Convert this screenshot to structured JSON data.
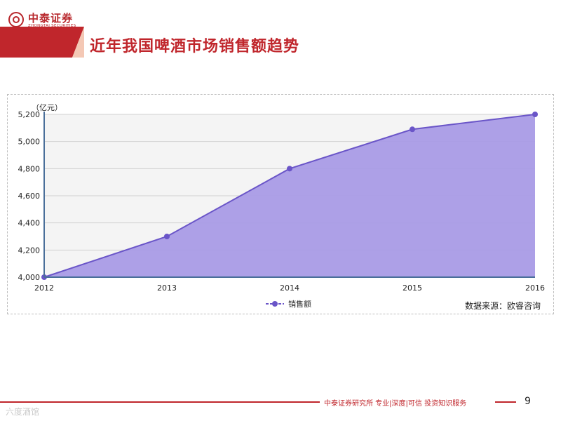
{
  "header": {
    "logo_cn": "中泰证券",
    "logo_en": "ZHONGTAI SECURITIES",
    "title": "近年我国啤酒市场销售额趋势"
  },
  "chart_data": {
    "type": "area",
    "title": "",
    "unit_label": "（亿元）",
    "xlabel": "",
    "ylabel": "",
    "categories": [
      "2012",
      "2013",
      "2014",
      "2015",
      "2016"
    ],
    "series": [
      {
        "name": "销售额",
        "values": [
          4000,
          4300,
          4800,
          5090,
          5200
        ]
      }
    ],
    "ylim": [
      4000,
      5200
    ],
    "yticks": [
      4000,
      4200,
      4400,
      4600,
      4800,
      5000,
      5200
    ],
    "ytick_labels": [
      "4,000",
      "4,200",
      "4,400",
      "4,600",
      "4,800",
      "5,000",
      "5,200"
    ],
    "grid": true,
    "legend": "bottom",
    "colors": {
      "fill": "#a99be6",
      "line": "#6a55c8",
      "marker": "#6a55c8"
    }
  },
  "source_note": "数据来源：欧睿咨询",
  "footer": {
    "text": "中泰证券研究所  专业|深度|可信  投资知识服务",
    "page_number": "9"
  },
  "watermark": "六度酒馆"
}
